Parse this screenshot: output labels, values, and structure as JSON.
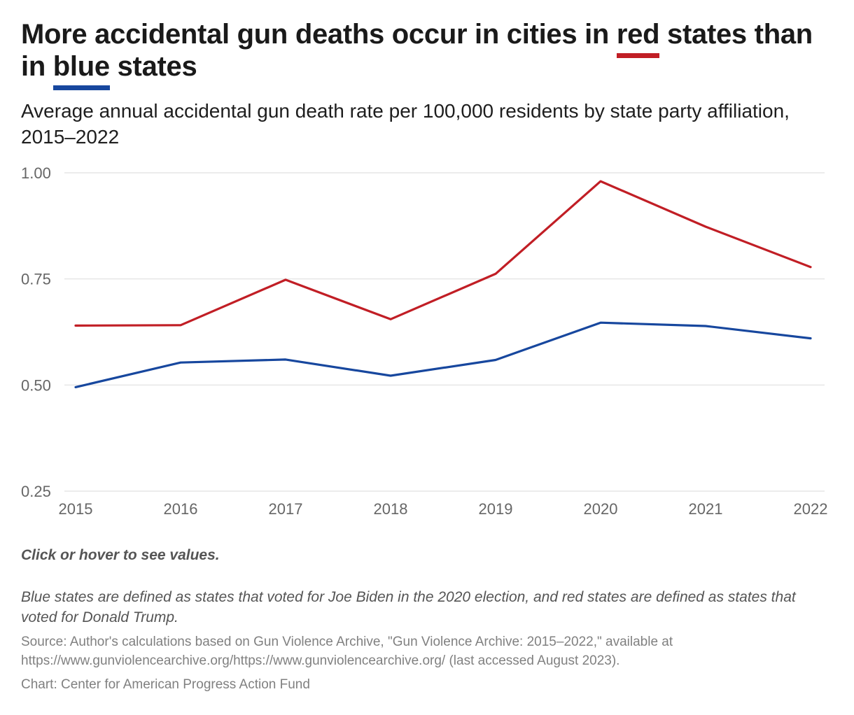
{
  "header": {
    "title_part1": "More accidental gun deaths occur in cities in ",
    "title_red": "red",
    "title_part2": " states than in ",
    "title_blue": "blue",
    "title_part3": " states",
    "subtitle": "Average annual accidental gun death rate per 100,000 residents by state party affiliation, 2015–2022"
  },
  "colors": {
    "red": "#c11e25",
    "blue": "#17479e",
    "grid": "#e0e0e0",
    "axis_text": "#666666"
  },
  "chart_data": {
    "type": "line",
    "title": "More accidental gun deaths occur in cities in red states than in blue states",
    "subtitle": "Average annual accidental gun death rate per 100,000 residents by state party affiliation, 2015–2022",
    "x": [
      "2015",
      "2016",
      "2017",
      "2018",
      "2019",
      "2020",
      "2021",
      "2022"
    ],
    "series": [
      {
        "key": "red",
        "color": "#c11e25",
        "values": [
          0.64,
          0.641,
          0.748,
          0.655,
          0.762,
          0.98,
          0.873,
          0.778
        ]
      },
      {
        "key": "blue",
        "color": "#17479e",
        "values": [
          0.495,
          0.553,
          0.56,
          0.522,
          0.559,
          0.647,
          0.639,
          0.61
        ]
      }
    ],
    "ylim": [
      0.25,
      1.0
    ],
    "yticks": [
      "0.25",
      "0.50",
      "0.75",
      "1.00"
    ],
    "xlabel": "",
    "ylabel": "",
    "grid": true,
    "legend": "none"
  },
  "notes": {
    "interaction": "Click or hover to see values.",
    "definition": "Blue states are defined as states that voted for Joe Biden in the 2020 election, and red states are defined as states that voted for Donald Trump.",
    "source": "Source: Author's calculations based on Gun Violence Archive, \"Gun Violence Archive: 2015–2022,\" available at https://www.gunviolencearchive.org/https://www.gunviolencearchive.org/ (last accessed August 2023).",
    "credit": "Chart: Center for American Progress Action Fund"
  }
}
